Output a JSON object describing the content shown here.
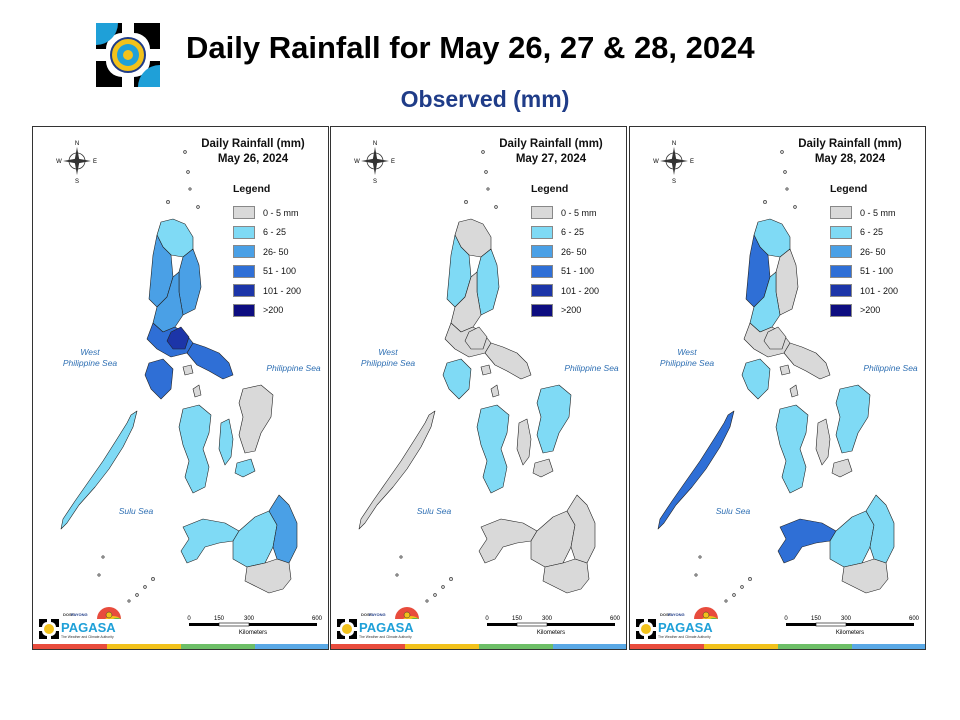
{
  "header": {
    "title": "Daily Rainfall for May 26, 27 & 28, 2024",
    "subtitle": "Observed (mm)"
  },
  "legend": {
    "title": "Legend",
    "items": [
      {
        "label": "0 - 5 mm",
        "color": "#d9d9d9"
      },
      {
        "label": "6 - 25",
        "color": "#7fdaf5"
      },
      {
        "label": "26- 50",
        "color": "#4aa0e6"
      },
      {
        "label": "51 - 100",
        "color": "#2f6fd6"
      },
      {
        "label": "101 - 200",
        "color": "#1c35a8"
      },
      {
        "label": ">200",
        "color": "#0d0d80"
      }
    ]
  },
  "map_labels": {
    "west_sea": "West\nPhilippine Sea",
    "east_sea": "Philippine Sea",
    "south_sea": "Sulu Sea",
    "scale_ticks": [
      "0",
      "150",
      "300",
      "600"
    ],
    "scale_unit": "Kilometers",
    "compass": {
      "n": "N",
      "s": "S",
      "e": "E",
      "w": "W"
    },
    "brand": "PAGASA",
    "brand_small": "DOST",
    "brand_top": "PAYONG",
    "tagline": "The Weather and Climate Authority"
  },
  "panels": [
    {
      "title": "Daily Rainfall (mm)",
      "date": "May 26, 2024",
      "regions": {
        "luzon_north": "#7fdaf5",
        "luzon_ne": "#4aa0e6",
        "luzon_west": "#4aa0e6",
        "luzon_central": "#4aa0e6",
        "luzon_south": "#2f6fd6",
        "bicol": "#2f6fd6",
        "mindoro": "#2f6fd6",
        "palawan": "#7fdaf5",
        "visayas_w": "#7fdaf5",
        "visayas_c": "#7fdaf5",
        "visayas_e": "#d9d9d9",
        "mindanao_w": "#7fdaf5",
        "mindanao_c": "#7fdaf5",
        "mindanao_e": "#4aa0e6",
        "mindanao_s": "#d9d9d9",
        "core": "#1c35a8"
      }
    },
    {
      "title": "Daily Rainfall (mm)",
      "date": "May 27, 2024",
      "regions": {
        "luzon_north": "#d9d9d9",
        "luzon_ne": "#7fdaf5",
        "luzon_west": "#7fdaf5",
        "luzon_central": "#d9d9d9",
        "luzon_south": "#d9d9d9",
        "bicol": "#d9d9d9",
        "mindoro": "#7fdaf5",
        "palawan": "#d9d9d9",
        "visayas_w": "#7fdaf5",
        "visayas_c": "#d9d9d9",
        "visayas_e": "#7fdaf5",
        "mindanao_w": "#d9d9d9",
        "mindanao_c": "#d9d9d9",
        "mindanao_e": "#d9d9d9",
        "mindanao_s": "#d9d9d9",
        "core": "#d9d9d9"
      }
    },
    {
      "title": "Daily Rainfall (mm)",
      "date": "May 28, 2024",
      "regions": {
        "luzon_north": "#7fdaf5",
        "luzon_ne": "#d9d9d9",
        "luzon_west": "#2f6fd6",
        "luzon_central": "#7fdaf5",
        "luzon_south": "#d9d9d9",
        "bicol": "#d9d9d9",
        "mindoro": "#7fdaf5",
        "palawan": "#2f6fd6",
        "visayas_w": "#7fdaf5",
        "visayas_c": "#d9d9d9",
        "visayas_e": "#7fdaf5",
        "mindanao_w": "#2f6fd6",
        "mindanao_c": "#7fdaf5",
        "mindanao_e": "#7fdaf5",
        "mindanao_s": "#d9d9d9",
        "core": "#d9d9d9"
      }
    }
  ]
}
